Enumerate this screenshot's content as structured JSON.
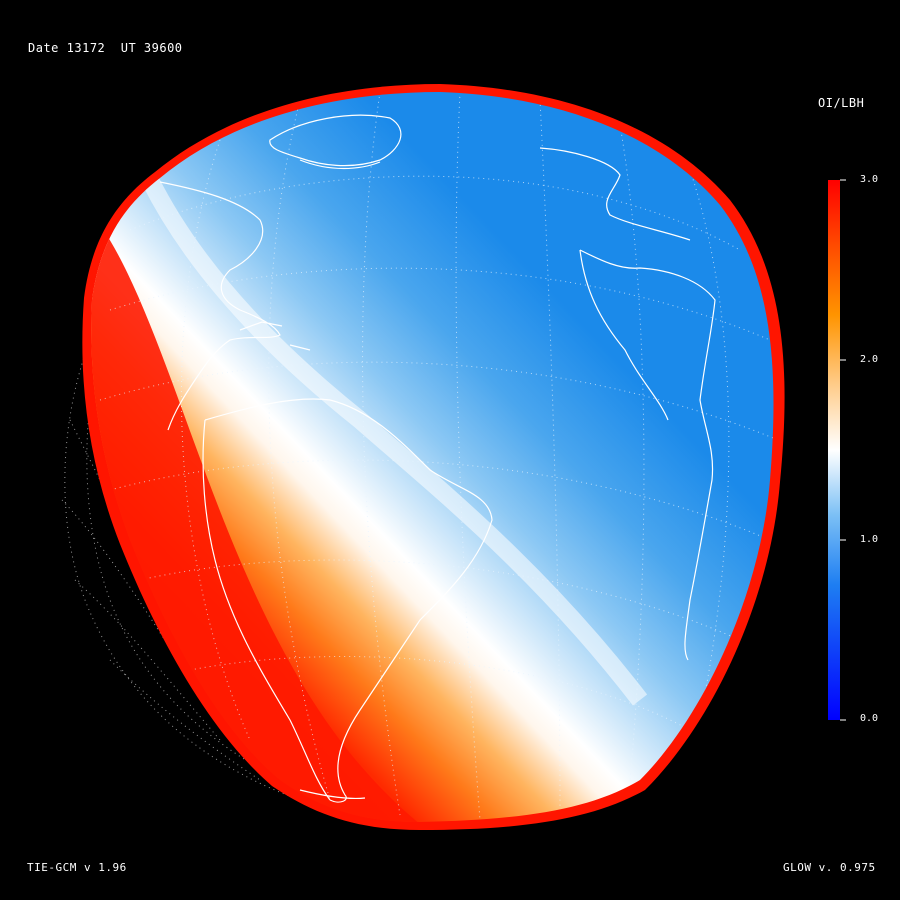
{
  "header": {
    "date_label": "Date",
    "date_value": "13172",
    "ut_label": "UT",
    "ut_value": "39600"
  },
  "footer": {
    "left_model": "TIE-GCM v 1.96",
    "right_model": "GLOW v. 0.975"
  },
  "colorbar": {
    "title": "OI/LBH",
    "min": 0.0,
    "max": 3.0,
    "ticks": [
      {
        "value": 3.0,
        "label": "3.0"
      },
      {
        "value": 2.0,
        "label": "2.0"
      },
      {
        "value": 1.0,
        "label": "1.0"
      },
      {
        "value": 0.0,
        "label": "0.0"
      }
    ],
    "colors": [
      "#0000ff",
      "#3a9bf2",
      "#ffffff",
      "#ff9a00",
      "#ff0000"
    ]
  },
  "map": {
    "projection": "orthographic",
    "field": "OI/LBH ratio",
    "graticule": "dotted",
    "coastlines": true
  }
}
